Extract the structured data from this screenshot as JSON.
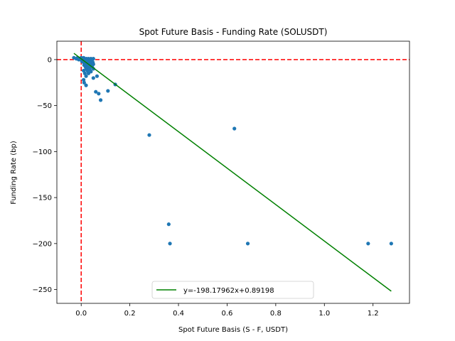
{
  "chart_data": {
    "type": "scatter",
    "title": "Spot Future Basis - Funding Rate (SOLUSDT)",
    "xlabel": "Spot Future Basis (S - F, USDT)",
    "ylabel": "Funding Rate (bp)",
    "xlim": [
      -0.1,
      1.35
    ],
    "ylim": [
      -265,
      20
    ],
    "xticks": [
      0.0,
      0.2,
      0.4,
      0.6,
      0.8,
      1.0,
      1.2
    ],
    "xtick_labels": [
      "0.0",
      "0.2",
      "0.4",
      "0.6",
      "0.8",
      "1.0",
      "1.2"
    ],
    "yticks": [
      0,
      -50,
      -100,
      -150,
      -200,
      -250
    ],
    "ytick_labels": [
      "0",
      "−50",
      "−100",
      "−150",
      "−200",
      "−250"
    ],
    "grid": false,
    "points": [
      {
        "x": -0.03,
        "y": 2
      },
      {
        "x": -0.02,
        "y": 1
      },
      {
        "x": -0.015,
        "y": 2
      },
      {
        "x": -0.01,
        "y": 1
      },
      {
        "x": -0.01,
        "y": 0
      },
      {
        "x": 0.0,
        "y": 2
      },
      {
        "x": 0.0,
        "y": 0
      },
      {
        "x": 0.003,
        "y": -2
      },
      {
        "x": 0.005,
        "y": 1
      },
      {
        "x": 0.008,
        "y": -1
      },
      {
        "x": 0.01,
        "y": 2
      },
      {
        "x": 0.01,
        "y": 0
      },
      {
        "x": 0.01,
        "y": -3
      },
      {
        "x": 0.012,
        "y": -6
      },
      {
        "x": 0.015,
        "y": 1
      },
      {
        "x": 0.015,
        "y": -4
      },
      {
        "x": 0.018,
        "y": -8
      },
      {
        "x": 0.02,
        "y": 0
      },
      {
        "x": 0.02,
        "y": -2
      },
      {
        "x": 0.02,
        "y": -10
      },
      {
        "x": 0.022,
        "y": 1
      },
      {
        "x": 0.025,
        "y": -5
      },
      {
        "x": 0.025,
        "y": -12
      },
      {
        "x": 0.028,
        "y": 0
      },
      {
        "x": 0.03,
        "y": -3
      },
      {
        "x": 0.03,
        "y": -7
      },
      {
        "x": 0.03,
        "y": 1
      },
      {
        "x": 0.032,
        "y": -9
      },
      {
        "x": 0.035,
        "y": -1
      },
      {
        "x": 0.035,
        "y": -11
      },
      {
        "x": 0.038,
        "y": -4
      },
      {
        "x": 0.04,
        "y": 1
      },
      {
        "x": 0.04,
        "y": -6
      },
      {
        "x": 0.042,
        "y": -2
      },
      {
        "x": 0.045,
        "y": -8
      },
      {
        "x": 0.045,
        "y": 0
      },
      {
        "x": 0.048,
        "y": -3
      },
      {
        "x": 0.05,
        "y": 1
      },
      {
        "x": 0.05,
        "y": -5
      },
      {
        "x": 0.03,
        "y": -15
      },
      {
        "x": 0.02,
        "y": -18
      },
      {
        "x": 0.04,
        "y": -13
      },
      {
        "x": 0.05,
        "y": -10
      },
      {
        "x": 0.01,
        "y": -12
      },
      {
        "x": 0.015,
        "y": -15
      },
      {
        "x": 0.01,
        "y": -22
      },
      {
        "x": 0.012,
        "y": -25
      },
      {
        "x": 0.02,
        "y": -28
      },
      {
        "x": 0.05,
        "y": -20
      },
      {
        "x": 0.065,
        "y": -18
      },
      {
        "x": 0.06,
        "y": -35
      },
      {
        "x": 0.072,
        "y": -37
      },
      {
        "x": 0.08,
        "y": -44
      },
      {
        "x": 0.11,
        "y": -34
      },
      {
        "x": 0.14,
        "y": -27
      },
      {
        "x": 0.28,
        "y": -82
      },
      {
        "x": 0.63,
        "y": -75
      },
      {
        "x": 0.36,
        "y": -179
      },
      {
        "x": 0.365,
        "y": -200
      },
      {
        "x": 0.685,
        "y": -200
      },
      {
        "x": 1.18,
        "y": -200
      },
      {
        "x": 1.275,
        "y": -200
      }
    ],
    "fit_line": {
      "name": "y=-198.17962x+0.89198",
      "slope": -198.17962,
      "intercept": 0.89198,
      "x_range": [
        -0.03,
        1.275
      ]
    },
    "reference_lines": {
      "horizontal_y": 0,
      "vertical_x": 0
    },
    "legend": {
      "placement": "lower-center",
      "entries": [
        "y=-198.17962x+0.89198"
      ]
    },
    "colors": {
      "points": "#1f77b4",
      "fit_line": "#008000",
      "reference": "#ff0000",
      "axes": "#000000"
    }
  }
}
